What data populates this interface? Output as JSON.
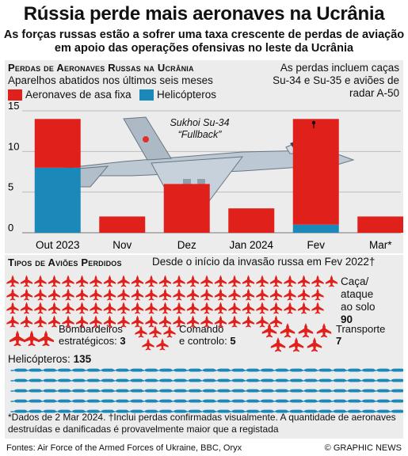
{
  "title": "Rússia perde mais aeronaves na Ucrânia",
  "subtitle": "As forças russas estão a sofrer uma taxa crescente de perdas de aviação em apoio das operações ofensivas no leste da Ucrânia",
  "section1_title": "Perdas de Aeronaves Russas na Ucrânia",
  "section1_subtitle": "Aparelhos abatidos nos últimos seis meses",
  "legend_fixed": "Aeronaves de asa fixa",
  "legend_heli": "Helicópteros",
  "annotation": "As perdas incluem caças Su-34 e Su-35 e aviões de radar A-50",
  "plane_label_1": "Sukhoi Su-34",
  "plane_label_2": "“Fullback”",
  "colors": {
    "fixed": "#e0201b",
    "heli": "#1a88b8"
  },
  "chart_data": {
    "type": "bar",
    "stacked": true,
    "categories": [
      "Out 2023",
      "Nov",
      "Dez",
      "Jan 2024",
      "Fev",
      "Mar*"
    ],
    "series": [
      {
        "name": "Helicópteros",
        "values": [
          8,
          0,
          0,
          0,
          1,
          0
        ]
      },
      {
        "name": "Aeronaves de asa fixa",
        "values": [
          6,
          2,
          6,
          3,
          13,
          2
        ]
      }
    ],
    "yticks": [
      0,
      5,
      10,
      15
    ],
    "ylim": [
      0,
      15
    ]
  },
  "section2_title": "Tipos de Aviões Perdidos",
  "section2_subtitle": "Desde o início da invasão russa em Fev 2022†",
  "types": {
    "attack_label_1": "Caça/ ataque",
    "attack_label_2": "ao solo",
    "attack_value": "90",
    "bomber_label_1": "Bombardeiros",
    "bomber_label_2": "estratégicos:",
    "bomber_value": "3",
    "command_label_1": "Comando",
    "command_label_2": "e controlo:",
    "command_value": "5",
    "transport_label": "Transporte",
    "transport_value": "7",
    "heli_label": "Helicópteros:",
    "heli_value": "135"
  },
  "type_counts": {
    "attack": 90,
    "bomber": 3,
    "command": 5,
    "transport": 7,
    "heli": 135
  },
  "footnote": "*Dados de 2 Mar 2024. †Inclui perdas confirmadas visualmente. A quantidade de aeronaves destruídas e danificadas é provavelmente maior que a registada",
  "source": "Fontes: Air Force of the Armed Forces of Ukraine, BBC, Oryx",
  "credit": "© GRAPHIC NEWS"
}
